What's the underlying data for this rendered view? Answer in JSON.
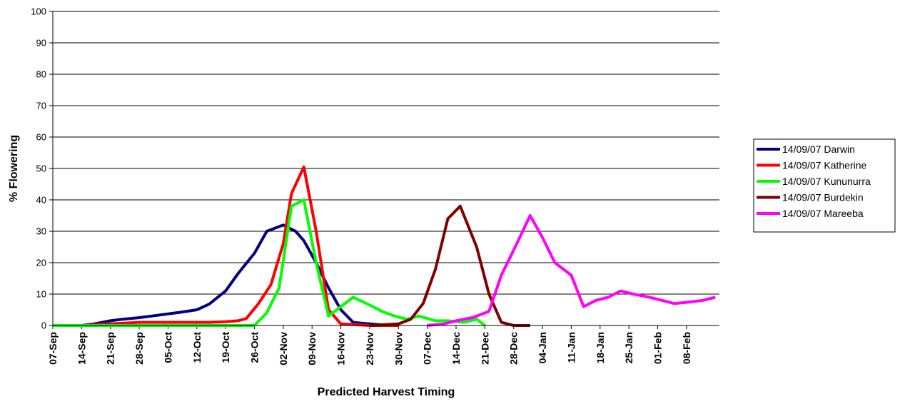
{
  "chart_data": {
    "type": "line",
    "title": "",
    "xlabel": "Predicted Harvest Timing",
    "ylabel": "% Flowering",
    "ylim": [
      0,
      100
    ],
    "yticks": [
      0,
      10,
      20,
      30,
      40,
      50,
      60,
      70,
      80,
      90,
      100
    ],
    "grid": true,
    "legend_position": "right",
    "x_tick_labels": [
      "07-Sep",
      "14-Sep",
      "21-Sep",
      "28-Sep",
      "05-Oct",
      "12-Oct",
      "19-Oct",
      "26-Oct",
      "02-Nov",
      "09-Nov",
      "16-Nov",
      "23-Nov",
      "30-Nov",
      "07-Dec",
      "14-Dec",
      "21-Dec",
      "28-Dec",
      "04-Jan",
      "11-Jan",
      "18-Jan",
      "25-Jan",
      "01-Feb",
      "08-Feb"
    ],
    "series": [
      {
        "name": "14/09/07 Darwin",
        "color": "#000080",
        "points": [
          [
            "07-Sep",
            0
          ],
          [
            "14-Sep",
            0
          ],
          [
            "17-Sep",
            0.5
          ],
          [
            "21-Sep",
            1.5
          ],
          [
            "24-Sep",
            2
          ],
          [
            "28-Sep",
            2.5
          ],
          [
            "01-Oct",
            3
          ],
          [
            "05-Oct",
            3.7
          ],
          [
            "08-Oct",
            4.2
          ],
          [
            "12-Oct",
            5
          ],
          [
            "15-Oct",
            6.8
          ],
          [
            "19-Oct",
            11
          ],
          [
            "22-Oct",
            16.5
          ],
          [
            "26-Oct",
            23
          ],
          [
            "29-Oct",
            30
          ],
          [
            "02-Nov",
            32
          ],
          [
            "05-Nov",
            30
          ],
          [
            "07-Nov",
            27
          ],
          [
            "10-Nov",
            20
          ],
          [
            "13-Nov",
            12
          ],
          [
            "16-Nov",
            5
          ],
          [
            "19-Nov",
            1
          ],
          [
            "23-Nov",
            0.5
          ],
          [
            "26-Nov",
            0.2
          ],
          [
            "30-Nov",
            0
          ]
        ]
      },
      {
        "name": "14/09/07 Katherine",
        "color": "#ff0000",
        "points": [
          [
            "07-Sep",
            0
          ],
          [
            "14-Sep",
            0
          ],
          [
            "21-Sep",
            0.5
          ],
          [
            "28-Sep",
            1
          ],
          [
            "05-Oct",
            1
          ],
          [
            "12-Oct",
            1
          ],
          [
            "15-Oct",
            1
          ],
          [
            "19-Oct",
            1.2
          ],
          [
            "22-Oct",
            1.5
          ],
          [
            "24-Oct",
            2.2
          ],
          [
            "27-Oct",
            7
          ],
          [
            "30-Oct",
            13
          ],
          [
            "02-Nov",
            26
          ],
          [
            "04-Nov",
            42
          ],
          [
            "07-Nov",
            50.5
          ],
          [
            "10-Nov",
            30
          ],
          [
            "13-Nov",
            5
          ],
          [
            "16-Nov",
            0.5
          ],
          [
            "19-Nov",
            0.3
          ],
          [
            "23-Nov",
            0
          ],
          [
            "30-Nov",
            0
          ]
        ]
      },
      {
        "name": "14/09/07 Kununurra",
        "color": "#00ff00",
        "points": [
          [
            "07-Sep",
            0
          ],
          [
            "14-Sep",
            0
          ],
          [
            "21-Sep",
            0
          ],
          [
            "28-Sep",
            0
          ],
          [
            "05-Oct",
            0
          ],
          [
            "12-Oct",
            0
          ],
          [
            "19-Oct",
            0
          ],
          [
            "26-Oct",
            0
          ],
          [
            "29-Oct",
            4
          ],
          [
            "01-Nov",
            12
          ],
          [
            "04-Nov",
            38
          ],
          [
            "07-Nov",
            40
          ],
          [
            "10-Nov",
            20
          ],
          [
            "13-Nov",
            3
          ],
          [
            "16-Nov",
            6
          ],
          [
            "19-Nov",
            9
          ],
          [
            "23-Nov",
            6.5
          ],
          [
            "26-Nov",
            4.5
          ],
          [
            "29-Nov",
            3
          ],
          [
            "02-Dec",
            2
          ],
          [
            "05-Dec",
            3
          ],
          [
            "09-Dec",
            1.5
          ],
          [
            "12-Dec",
            1.5
          ],
          [
            "16-Dec",
            1
          ],
          [
            "19-Dec",
            2
          ],
          [
            "21-Dec",
            0
          ]
        ]
      },
      {
        "name": "14/09/07 Burdekin",
        "color": "#800000",
        "points": [
          [
            "23-Nov",
            0
          ],
          [
            "30-Nov",
            0.5
          ],
          [
            "03-Dec",
            2
          ],
          [
            "06-Dec",
            7
          ],
          [
            "09-Dec",
            18
          ],
          [
            "12-Dec",
            34
          ],
          [
            "15-Dec",
            38
          ],
          [
            "19-Dec",
            25
          ],
          [
            "22-Dec",
            10
          ],
          [
            "25-Dec",
            1
          ],
          [
            "28-Dec",
            0
          ],
          [
            "01-Jan",
            0
          ]
        ]
      },
      {
        "name": "14/09/07 Mareeba",
        "color": "#ff00ff",
        "points": [
          [
            "07-Dec",
            0
          ],
          [
            "11-Dec",
            0.5
          ],
          [
            "14-Dec",
            1.5
          ],
          [
            "18-Dec",
            2.5
          ],
          [
            "22-Dec",
            4.5
          ],
          [
            "25-Dec",
            16
          ],
          [
            "28-Dec",
            24
          ],
          [
            "01-Jan",
            35
          ],
          [
            "04-Jan",
            28
          ],
          [
            "07-Jan",
            20
          ],
          [
            "11-Jan",
            16
          ],
          [
            "14-Jan",
            6
          ],
          [
            "17-Jan",
            8
          ],
          [
            "20-Jan",
            9
          ],
          [
            "23-Jan",
            11
          ],
          [
            "26-Jan",
            10
          ],
          [
            "30-Jan",
            9
          ],
          [
            "02-Feb",
            8
          ],
          [
            "05-Feb",
            7
          ],
          [
            "09-Feb",
            7.5
          ],
          [
            "12-Feb",
            8
          ],
          [
            "15-Feb",
            9
          ]
        ]
      }
    ]
  }
}
